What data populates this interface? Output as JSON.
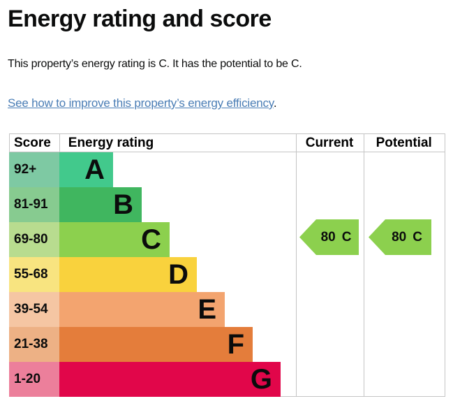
{
  "page": {
    "title": "Energy rating and score",
    "intro": "This property’s energy rating is C. It has the potential to be C.",
    "link_text": "See how to improve this property’s energy efficiency",
    "link_suffix": ".",
    "link_color": "#4a7db5",
    "text_color": "#0b0c0c"
  },
  "chart_data": {
    "type": "table",
    "title": "Energy rating and score",
    "columns": [
      "Score",
      "Energy rating",
      "Current",
      "Potential"
    ],
    "bands": [
      {
        "score": "92+",
        "letter": "A",
        "color": "#42c98c",
        "score_color": "#7ec9a3"
      },
      {
        "score": "81-91",
        "letter": "B",
        "color": "#40b65f",
        "score_color": "#87cb90"
      },
      {
        "score": "69-80",
        "letter": "C",
        "color": "#8cd04e",
        "score_color": "#b8dc8f"
      },
      {
        "score": "55-68",
        "letter": "D",
        "color": "#f9d23d",
        "score_color": "#f8e480"
      },
      {
        "score": "39-54",
        "letter": "E",
        "color": "#f3a46f",
        "score_color": "#f5c6a3"
      },
      {
        "score": "21-38",
        "letter": "F",
        "color": "#e47d3b",
        "score_color": "#edb185"
      },
      {
        "score": "1-20",
        "letter": "G",
        "color": "#e1064a",
        "score_color": "#ec7f9b"
      }
    ],
    "current": {
      "value": "80",
      "band": "C",
      "arrow_color": "#8cd04e"
    },
    "potential": {
      "value": "80",
      "band": "C",
      "arrow_color": "#8cd04e"
    },
    "layout": {
      "legend": "none",
      "grid": "column-dividers-only"
    }
  }
}
